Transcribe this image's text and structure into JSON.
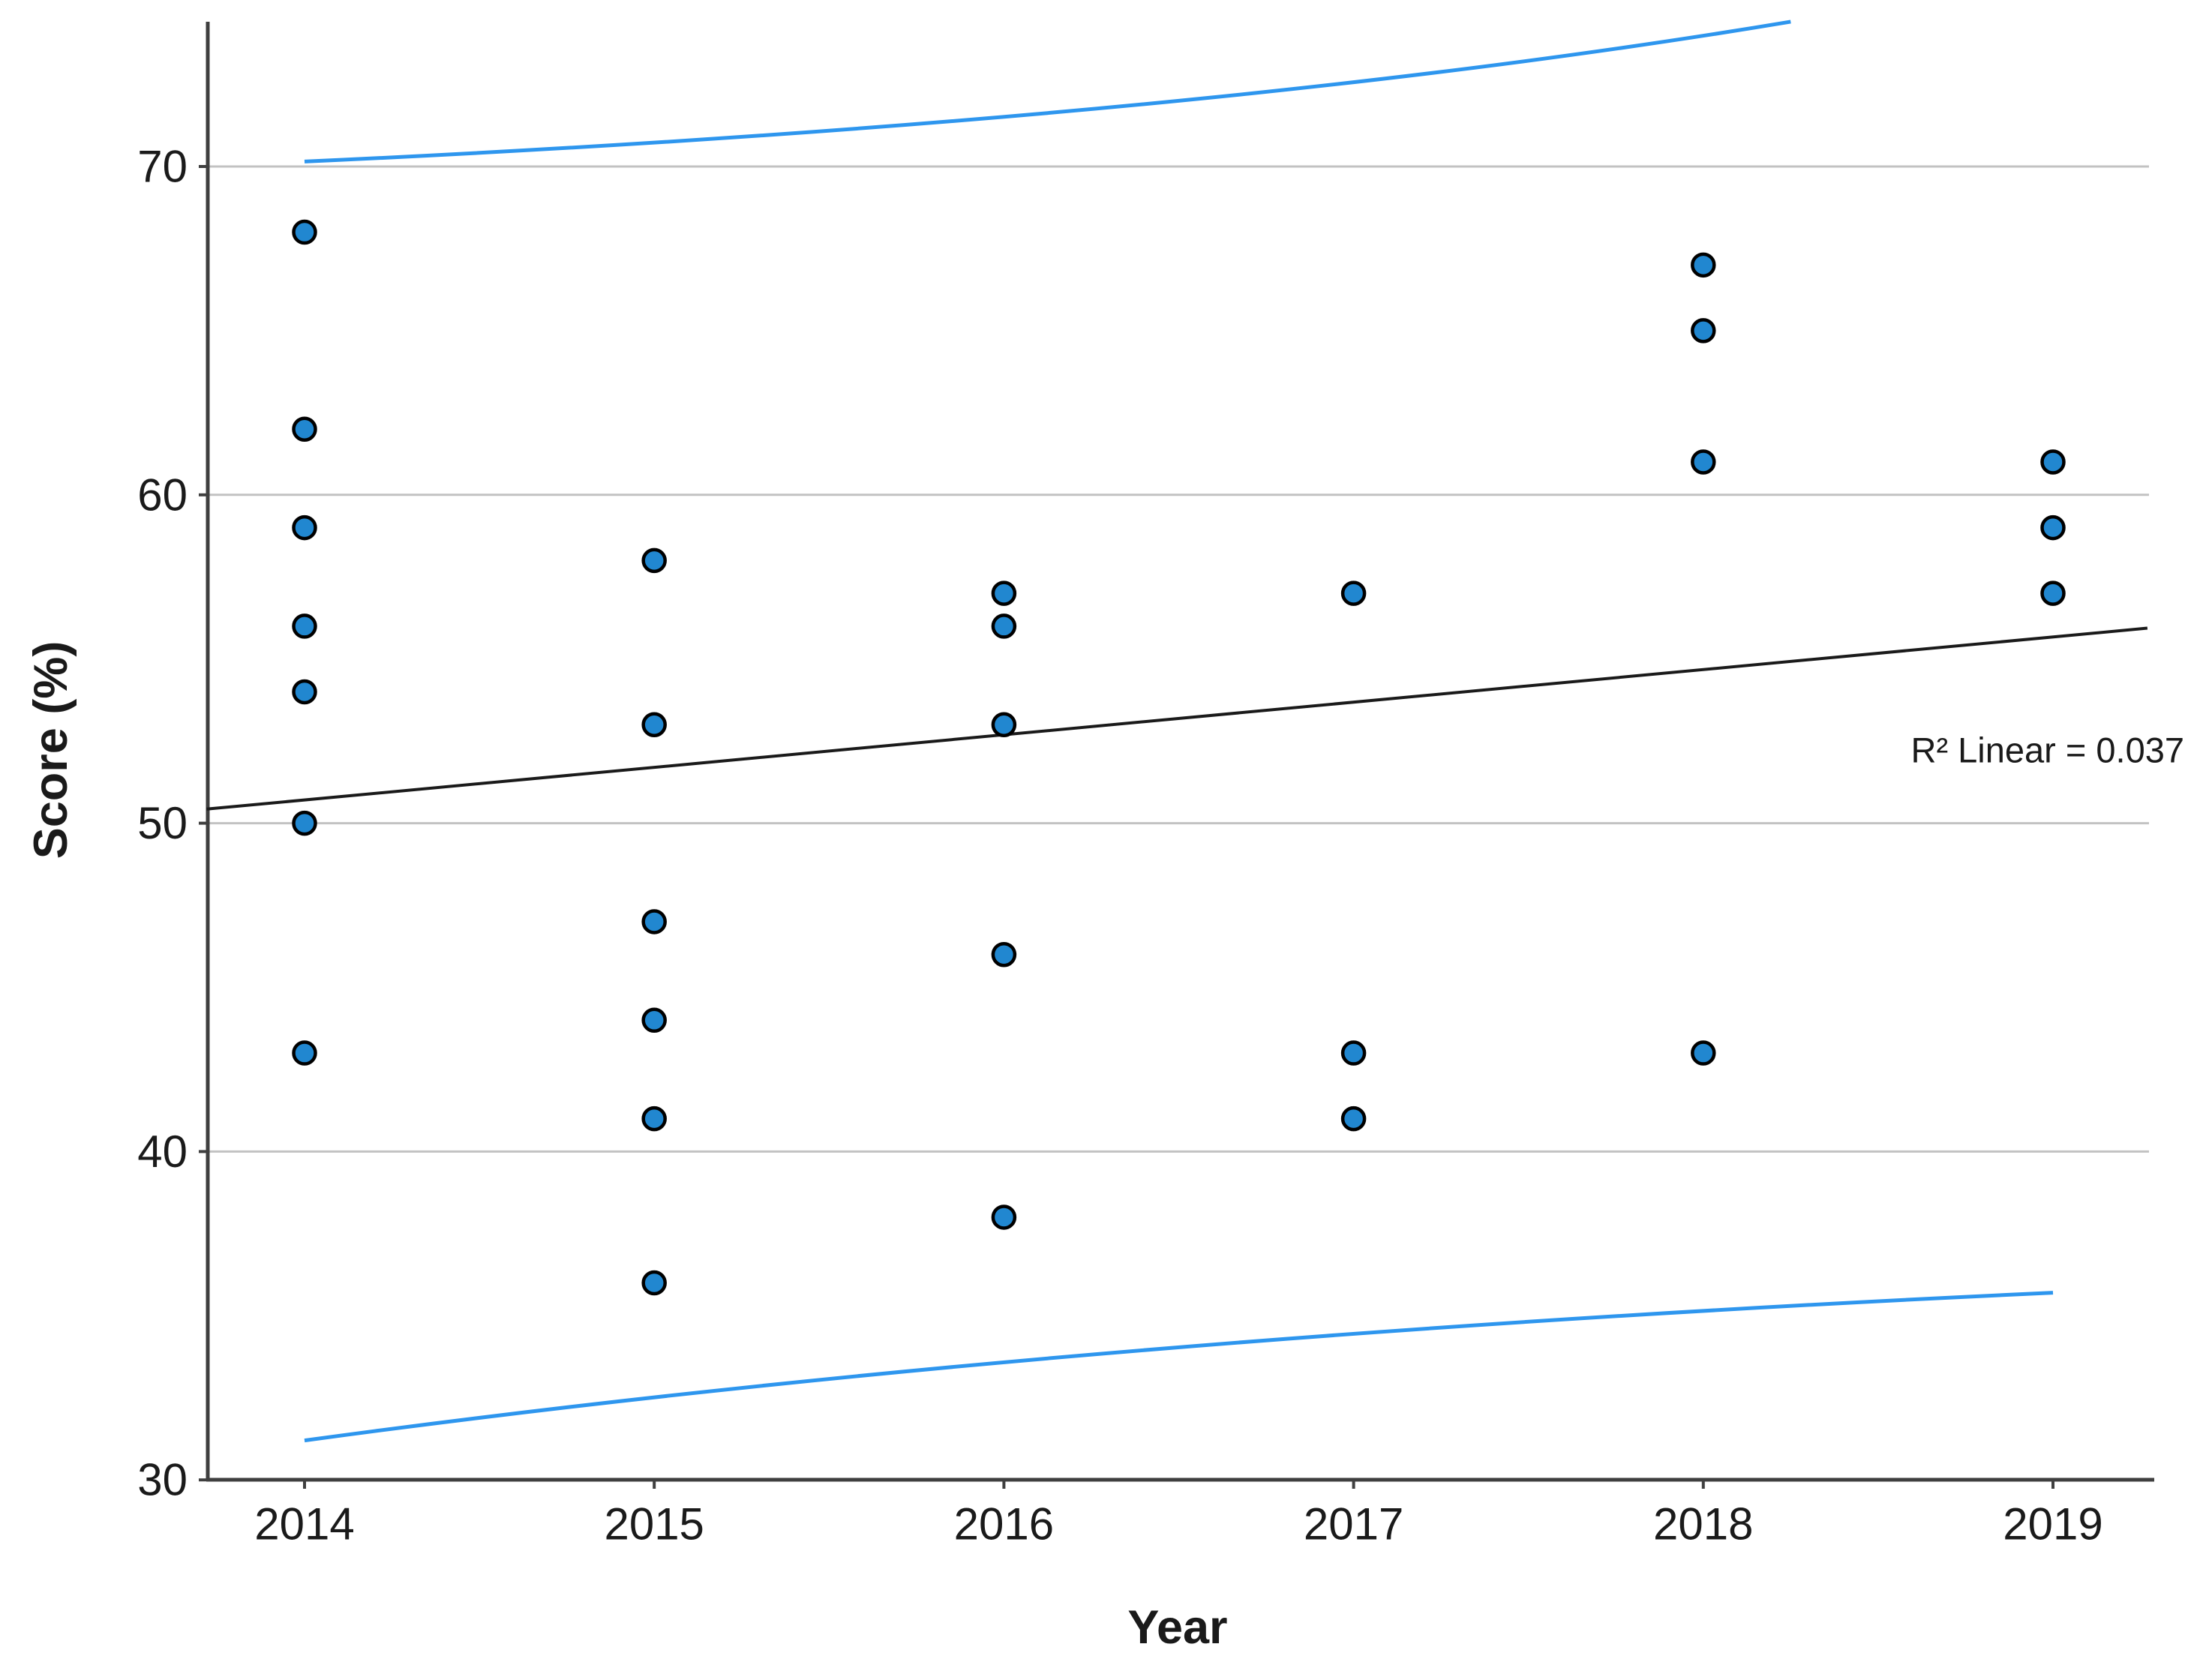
{
  "chart_data": {
    "type": "scatter",
    "title": "",
    "xlabel": "Year",
    "ylabel": "Score (%)",
    "x_tick_labels": [
      "2014",
      "2015",
      "2016",
      "2017",
      "2018",
      "2019"
    ],
    "x_tick_values": [
      2014,
      2015,
      2016,
      2017,
      2018,
      2019
    ],
    "y_tick_labels": [
      "30",
      "40",
      "50",
      "60",
      "70"
    ],
    "y_tick_values": [
      30,
      40,
      50,
      60,
      70
    ],
    "xlim": [
      2013.72,
      2019.27
    ],
    "ylim": [
      30,
      74.4
    ],
    "grid": "horizontal-only",
    "legend": "none",
    "series": [
      {
        "name": "observations",
        "points": [
          [
            2014,
            68
          ],
          [
            2014,
            62
          ],
          [
            2014,
            59
          ],
          [
            2014,
            56
          ],
          [
            2014,
            54
          ],
          [
            2014,
            50
          ],
          [
            2014,
            43
          ],
          [
            2015,
            58
          ],
          [
            2015,
            53
          ],
          [
            2015,
            47
          ],
          [
            2015,
            44
          ],
          [
            2015,
            41
          ],
          [
            2015,
            36
          ],
          [
            2016,
            57
          ],
          [
            2016,
            56
          ],
          [
            2016,
            53
          ],
          [
            2016,
            46
          ],
          [
            2016,
            38
          ],
          [
            2017,
            57
          ],
          [
            2017,
            43
          ],
          [
            2017,
            41
          ],
          [
            2018,
            67
          ],
          [
            2018,
            65
          ],
          [
            2018,
            61
          ],
          [
            2018,
            43
          ],
          [
            2019,
            61
          ],
          [
            2019,
            59
          ],
          [
            2019,
            57
          ]
        ]
      }
    ],
    "fit_line": {
      "name": "linear-regression",
      "x1": 2013.72,
      "y1": 50.43,
      "x2": 2019.27,
      "y2": 55.94,
      "r_squared": 0.037
    },
    "ci_upper_curve": {
      "p0": [
        2014.0,
        70.15
      ],
      "p1": [
        2016.56,
        71.4
      ],
      "p2": [
        2018.25,
        74.41
      ]
    },
    "ci_lower_curve": {
      "p0": [
        2014.0,
        31.2
      ],
      "p1": [
        2016.13,
        34.3
      ],
      "p2": [
        2019.0,
        35.7
      ]
    },
    "annotation": {
      "r2_text": "R² Linear = 0.037"
    }
  },
  "colors": {
    "background": "#ffffff",
    "marker_fill": "#2187d0",
    "marker_stroke": "#000000",
    "ci_curve": "#2e96ee",
    "regression_line": "#1a1a1a",
    "gridline": "#c2c2c2",
    "axis": "#3f3f3f",
    "r2_text": "#1d93f0",
    "tick_text": "#1a1a1a"
  }
}
